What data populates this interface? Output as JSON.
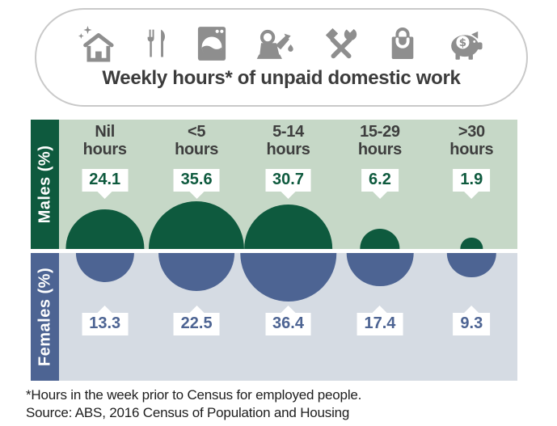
{
  "header": {
    "title": "Weekly hours* of unpaid domestic work",
    "icons": [
      "house-sparkle-icon",
      "cutlery-icon",
      "washing-machine-icon",
      "watering-can-icon",
      "tools-icon",
      "shopping-bag-icon",
      "piggy-bank-icon"
    ]
  },
  "chart": {
    "male_label": "Males (%)",
    "female_label": "Females (%)"
  },
  "chart_data": {
    "type": "bar",
    "mark": "proportional-semicircle-bubbles",
    "title": "Weekly hours* of unpaid domestic work",
    "categories": [
      "Nil hours",
      "<5 hours",
      "5-14 hours",
      "15-29 hours",
      ">30 hours"
    ],
    "series": [
      {
        "name": "Males (%)",
        "values": [
          24.1,
          35.6,
          30.7,
          6.2,
          1.9
        ]
      },
      {
        "name": "Females (%)",
        "values": [
          13.3,
          22.5,
          36.4,
          17.4,
          9.3
        ]
      }
    ],
    "unit": "percent",
    "legend_position": "left-rotated",
    "grid": false
  },
  "footer": {
    "note": "*Hours in the week prior to Census for employed people.",
    "source": "Source: ABS, 2016 Census of Population and Housing"
  },
  "colors": {
    "male": "#0e5a3e",
    "male_bg": "#c6d8c7",
    "female": "#4d6493",
    "female_bg": "#d5dbe3",
    "icon_gray": "#8e8e8e",
    "label_text": "#3e3e3e",
    "callout_bg": "#ffffff"
  }
}
